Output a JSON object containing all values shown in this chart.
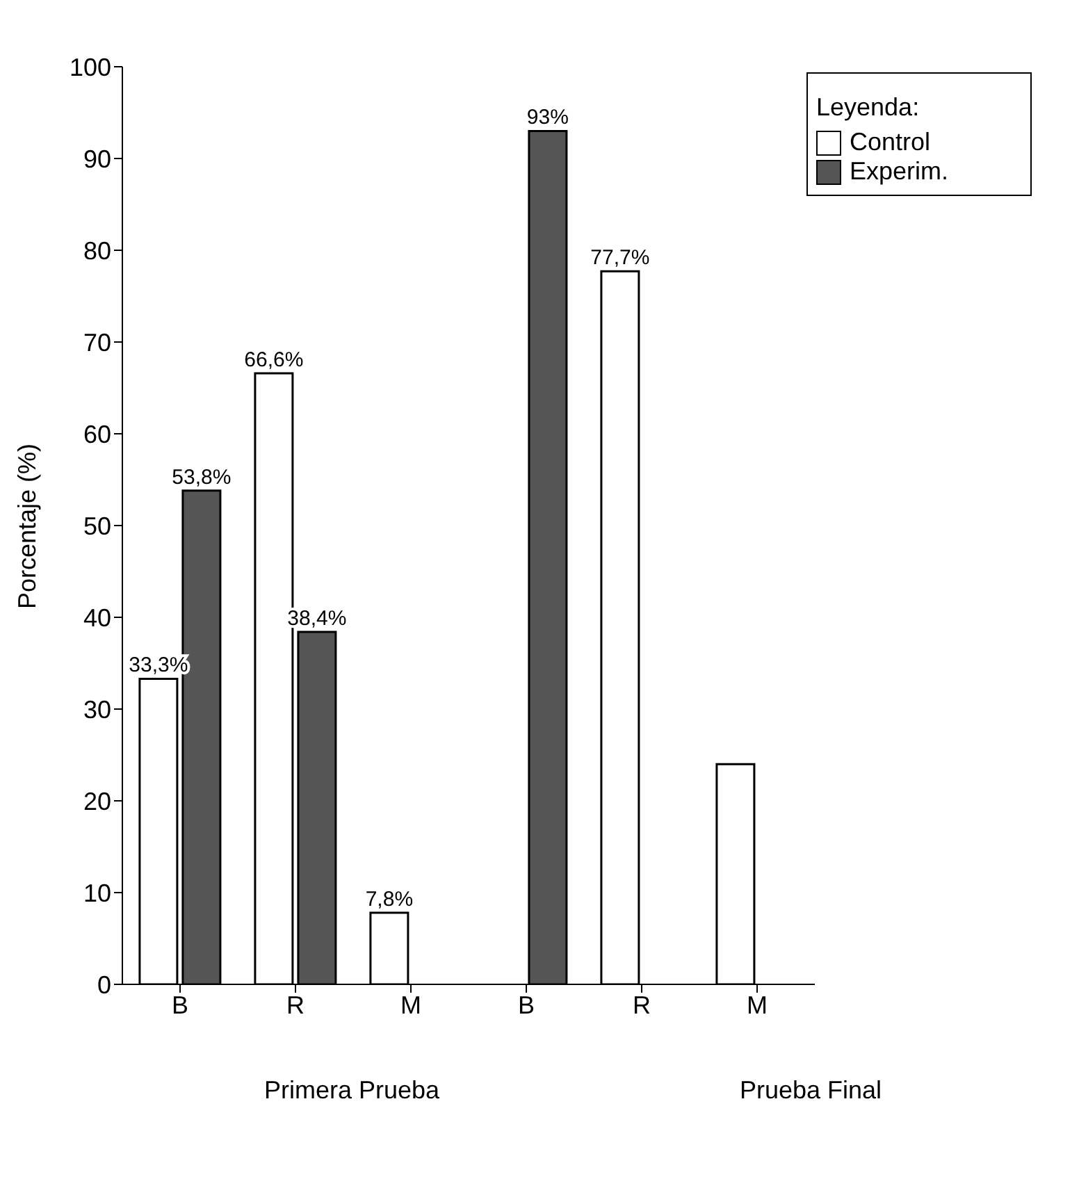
{
  "chart_data": {
    "type": "bar",
    "ylabel": "Porcentaje (%)",
    "legend_title": "Leyenda:",
    "categories": [
      "B",
      "R",
      "M",
      "B",
      "R",
      "M"
    ],
    "series": [
      {
        "name": "Control",
        "color": "#ffffff",
        "values": [
          33.3,
          66.6,
          7.8,
          null,
          77.7,
          24
        ],
        "value_labels": [
          "33,3%",
          "66,6%",
          "7,8%",
          null,
          "77,7%",
          null
        ]
      },
      {
        "name": "Experim.",
        "color": "#555555",
        "values": [
          53.8,
          38.4,
          null,
          93,
          null,
          null
        ],
        "value_labels": [
          "53,8%",
          "38,4%",
          null,
          "93%",
          null,
          null
        ]
      }
    ],
    "ylim": [
      0,
      100
    ],
    "yticks": [
      0,
      10,
      20,
      30,
      40,
      50,
      60,
      70,
      80,
      90,
      100
    ],
    "grid": false,
    "legend": "top right",
    "annotations": [
      "Primera Prueba",
      "Prueba Final"
    ]
  }
}
